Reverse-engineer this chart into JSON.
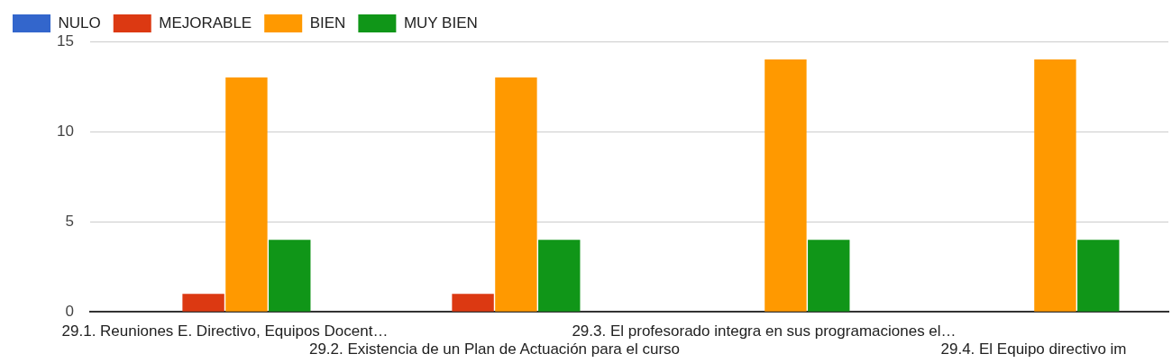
{
  "chart_data": {
    "type": "bar",
    "categories": [
      "29.1. Reuniones E. Directivo, Equipos Docent…",
      "29.2. Existencia de un Plan de Actuación para el curso",
      "29.3. El profesorado integra en sus programaciones el…",
      "29.4. El Equipo directivo im"
    ],
    "series": [
      {
        "name": "NULO",
        "color": "#3366cc",
        "values": [
          0,
          0,
          0,
          0
        ]
      },
      {
        "name": "MEJORABLE",
        "color": "#dc3912",
        "values": [
          1,
          1,
          0,
          0
        ]
      },
      {
        "name": "BIEN",
        "color": "#ff9900",
        "values": [
          13,
          13,
          14,
          14
        ]
      },
      {
        "name": "MUY BIEN",
        "color": "#109618",
        "values": [
          4,
          4,
          4,
          4
        ]
      }
    ],
    "ylim": [
      0,
      15
    ],
    "yticks": [
      0,
      5,
      10,
      15
    ],
    "grid": "y",
    "legend": "top left"
  }
}
